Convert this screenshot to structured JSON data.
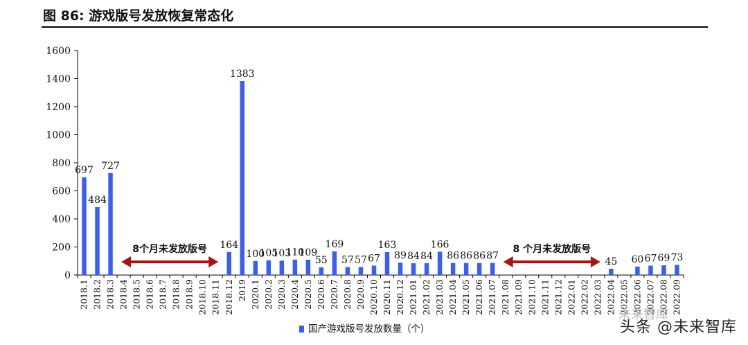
{
  "figure": {
    "title": "图 86: 游戏版号发放恢复常态化"
  },
  "watermarks": {
    "main": "头条 @未来智库",
    "faint": "未来智库"
  },
  "colors": {
    "bar": "#3a5ef5",
    "arrow": "#a31515",
    "axis": "#000000",
    "text": "#111111"
  },
  "chart_data": {
    "type": "bar",
    "categories": [
      "2018.1",
      "2018.2",
      "2018.3",
      "2018.4",
      "2018.5",
      "2018.6",
      "2018.7",
      "2018.8",
      "2018.9",
      "2018.10",
      "2018.11",
      "2018.12",
      "2019",
      "2020.1",
      "2020.2",
      "2020.3",
      "2020.4",
      "2020.5",
      "2020.6",
      "2020.7",
      "2020.8",
      "2020.9",
      "2020.10",
      "2020.11",
      "2020.12",
      "2021.01",
      "2021.02",
      "2021.03",
      "2021.04",
      "2021.05",
      "2021.06",
      "2021.07",
      "2021.08",
      "2021.09",
      "2021.10",
      "2021.11",
      "2021.12",
      "2022.01",
      "2022.02",
      "2022.03",
      "2022.04",
      "2022.05",
      "2022.06",
      "2022.07",
      "2022.08",
      "2022.09"
    ],
    "series": [
      {
        "name": "国产游戏版号发放数量（个）",
        "values": [
          697,
          484,
          727,
          null,
          null,
          null,
          null,
          null,
          null,
          null,
          null,
          164,
          1383,
          100,
          105,
          103,
          110,
          109,
          55,
          169,
          57,
          57,
          67,
          163,
          89,
          84,
          84,
          166,
          86,
          86,
          86,
          87,
          null,
          null,
          null,
          null,
          null,
          null,
          null,
          null,
          45,
          null,
          60,
          67,
          69,
          73
        ]
      }
    ],
    "ylim": [
      0,
      1600
    ],
    "yticks": [
      0,
      200,
      400,
      600,
      800,
      1000,
      1200,
      1400,
      1600
    ],
    "legend": "bottom-center",
    "grid": false,
    "annotations": [
      {
        "text": "8个月未发放版号",
        "from": "2018.4",
        "to": "2018.11"
      },
      {
        "text": "8 个月未发放版号",
        "from": "2021.08",
        "to": "2022.03"
      }
    ]
  }
}
